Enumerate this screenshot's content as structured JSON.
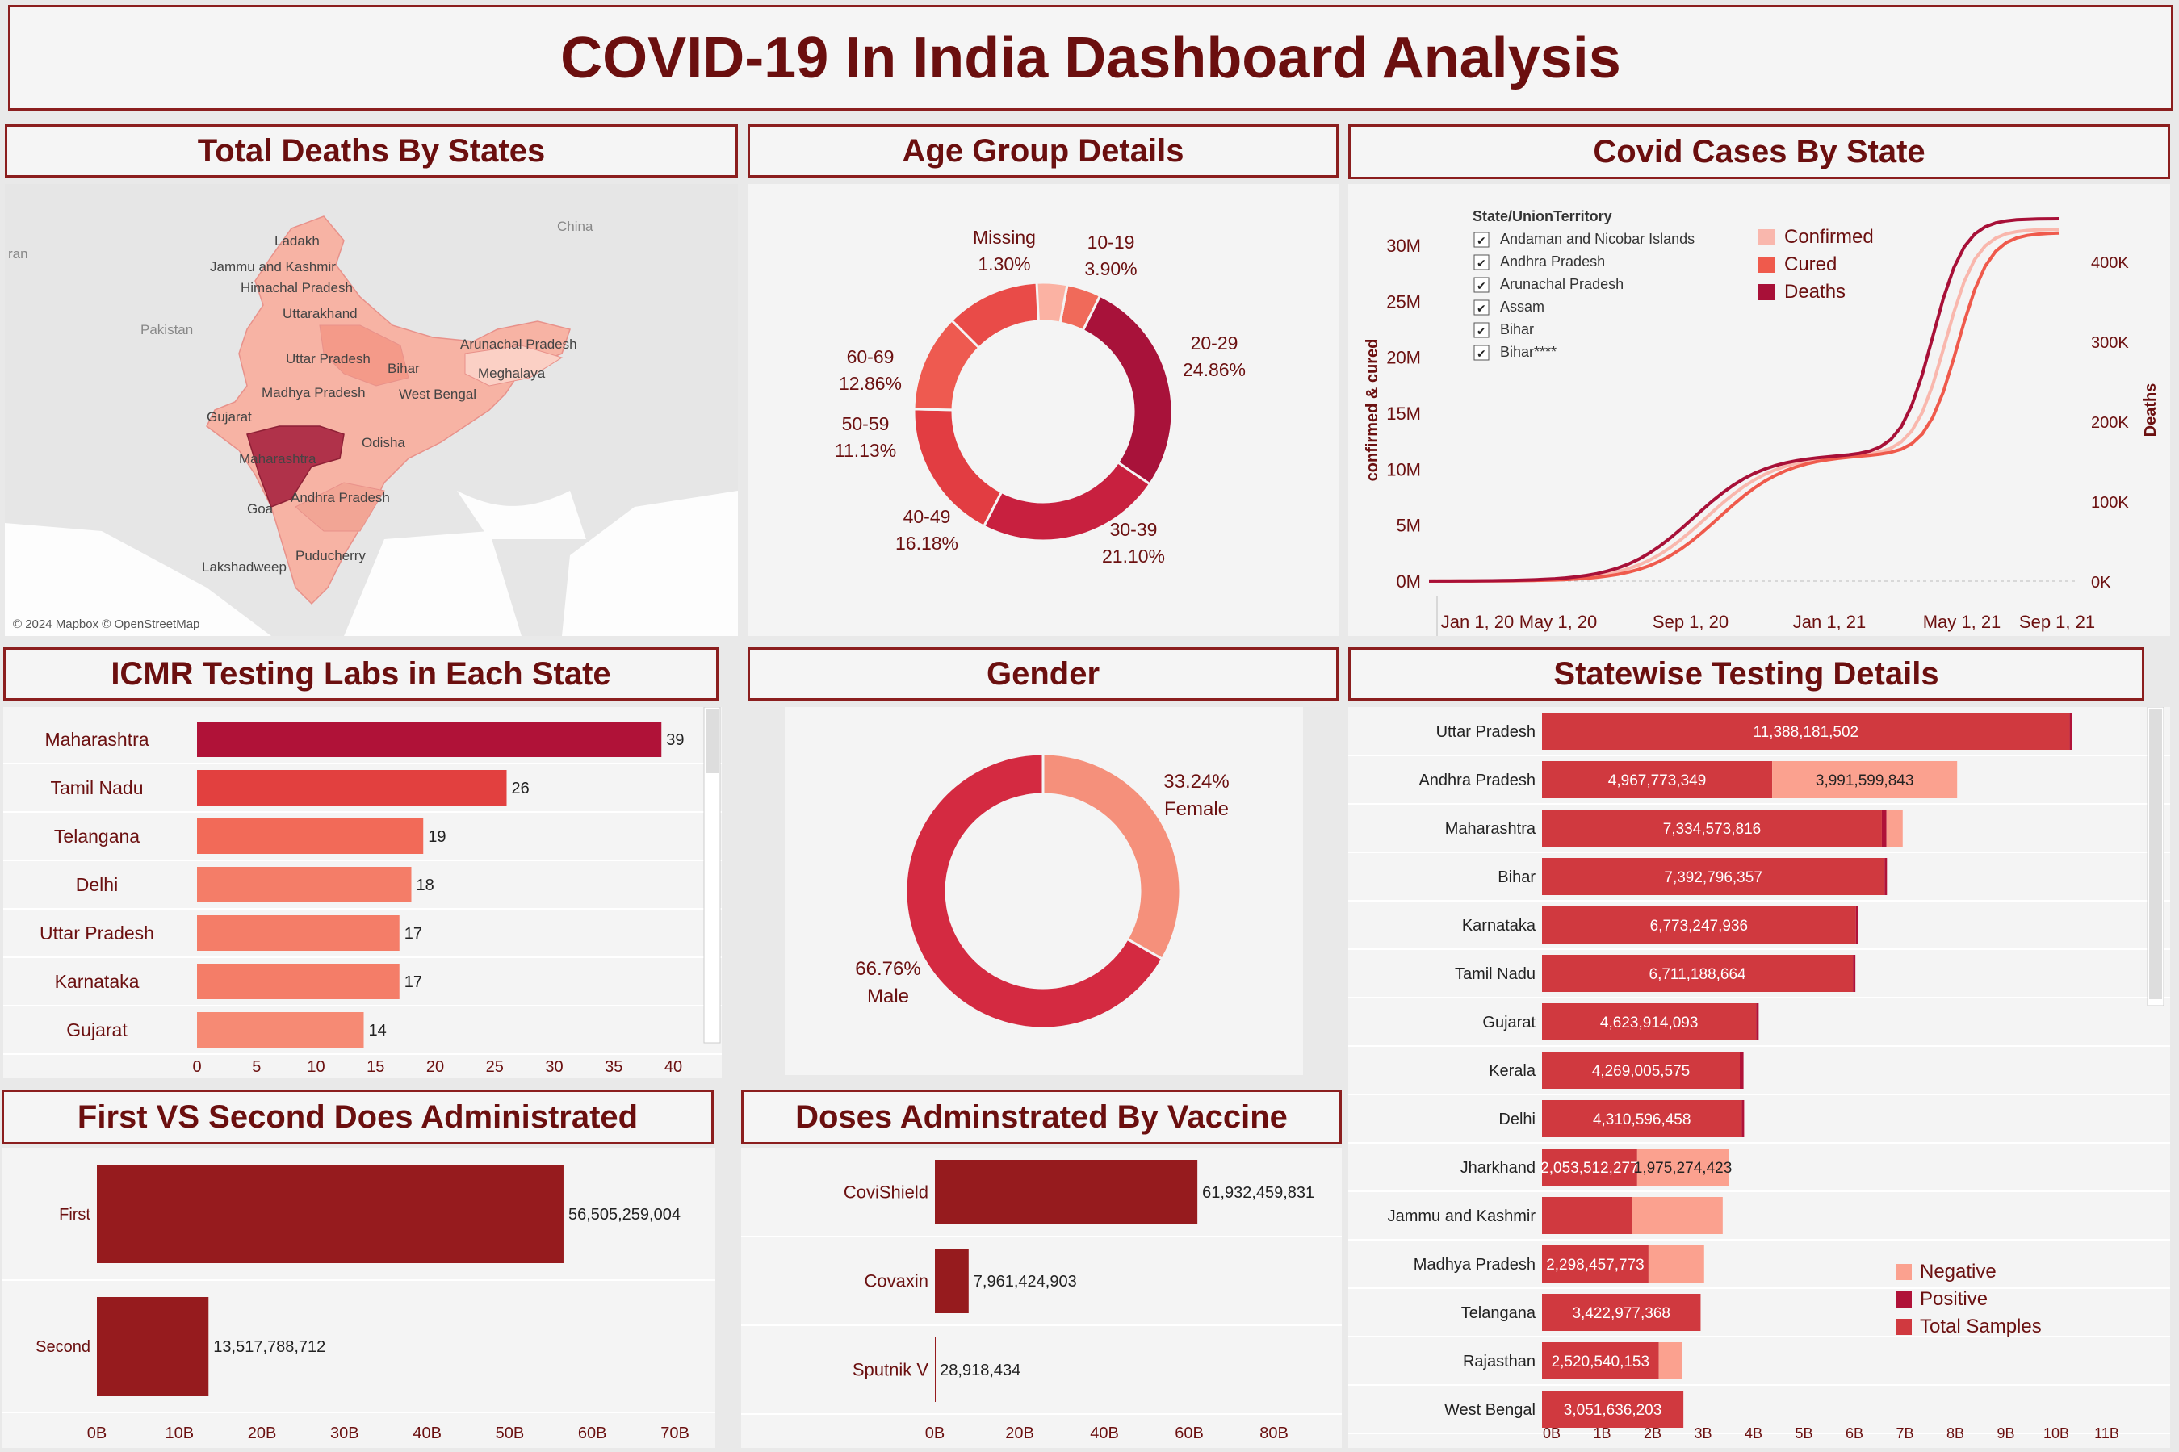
{
  "dashboard": {
    "title": "COVID-19 In India Dashboard Analysis"
  },
  "colors": {
    "dark_red": "#8b1a1a",
    "crimson": "#b01238",
    "red": "#d0393f",
    "salmon": "#f47e6b",
    "light": "#fbb2a3",
    "frame": "#8b1e1e"
  },
  "map_panel": {
    "title": "Total Deaths By States",
    "attribution": "© 2024 Mapbox © OpenStreetMap",
    "labels": [
      "Ladakh",
      "Jammu and Kashmir",
      "Himachal Pradesh",
      "Uttarakhand",
      "Uttar Pradesh",
      "Bihar",
      "Meghalaya",
      "Arunachal Pradesh",
      "Madhya Pradesh",
      "West Bengal",
      "Gujarat",
      "Odisha",
      "Maharashtra",
      "Andhra Pradesh",
      "Goa",
      "Puducherry",
      "Lakshadweep",
      "China",
      "Pakistan",
      "ran"
    ]
  },
  "age_panel": {
    "title": "Age Group Details",
    "chart_data": {
      "type": "pie",
      "donut": true,
      "slices": [
        {
          "label": "10-19",
          "value": 3.9,
          "text": "3.90%",
          "color": "#f06a5a"
        },
        {
          "label": "20-29",
          "value": 24.86,
          "text": "24.86%",
          "color": "#a8123a"
        },
        {
          "label": "30-39",
          "value": 21.1,
          "text": "21.10%",
          "color": "#c8203f"
        },
        {
          "label": "40-49",
          "value": 16.18,
          "text": "16.18%",
          "color": "#e23d42"
        },
        {
          "label": "50-59",
          "value": 11.13,
          "text": "11.13%",
          "color": "#ee5a50"
        },
        {
          "label": "60-69",
          "value": 12.86,
          "text": "12.86%",
          "color": "#e94b48"
        },
        {
          "label": "Missing",
          "value": 1.3,
          "text": "1.30%",
          "color": "#f89a86"
        }
      ]
    }
  },
  "cases_panel": {
    "title": "Covid Cases By State",
    "chart_data": {
      "type": "line",
      "x": [
        "Jan 1, 20",
        "May 1, 20",
        "Sep 1, 20",
        "Jan 1, 21",
        "May 1, 21",
        "Sep 1, 21"
      ],
      "xlabel": "",
      "ylabel": "confirmed & cured",
      "y2label": "Deaths",
      "yticks": [
        "0M",
        "5M",
        "10M",
        "15M",
        "20M",
        "25M",
        "30M"
      ],
      "y2ticks": [
        "0K",
        "100K",
        "200K",
        "300K",
        "400K"
      ],
      "ylim": [
        0,
        30000000
      ],
      "y2lim": [
        0,
        400000
      ],
      "series": [
        {
          "name": "Confirmed",
          "axis": "left",
          "color": "#f9b7ad",
          "values": [
            0,
            0.1,
            4.2,
            10.3,
            18.9,
            31.7
          ]
        },
        {
          "name": "Cured",
          "axis": "left",
          "color": "#ef5a4c",
          "values": [
            0,
            0.05,
            3.2,
            9.8,
            15.6,
            31.0
          ]
        },
        {
          "name": "Deaths",
          "axis": "right",
          "color": "#a81038",
          "values": [
            0,
            1000,
            66000,
            150000,
            215000,
            430000
          ]
        }
      ],
      "filter_title": "State/UnionTerritory",
      "filter_items": [
        "Andaman and Nicobar Islands",
        "Andhra Pradesh",
        "Arunachal Pradesh",
        "Assam",
        "Bihar",
        "Bihar****"
      ]
    }
  },
  "labs_panel": {
    "title": "ICMR Testing Labs in Each State",
    "chart_data": {
      "type": "bar",
      "orientation": "horizontal",
      "categories": [
        "Maharashtra",
        "Tamil Nadu",
        "Telangana",
        "Delhi",
        "Uttar Pradesh",
        "Karnataka",
        "Gujarat"
      ],
      "values": [
        39,
        26,
        19,
        18,
        17,
        17,
        14
      ],
      "colors": [
        "#b01238",
        "#e2403f",
        "#f26a58",
        "#f47d68",
        "#f47d68",
        "#f47d68",
        "#f68a74"
      ],
      "xticks": [
        "0",
        "5",
        "10",
        "15",
        "20",
        "25",
        "30",
        "35",
        "40"
      ],
      "xlim": [
        0,
        40
      ]
    }
  },
  "gender_panel": {
    "title": "Gender",
    "chart_data": {
      "type": "pie",
      "donut": true,
      "slices": [
        {
          "label": "Female",
          "value": 33.24,
          "text": "33.24%",
          "color": "#f5907b"
        },
        {
          "label": "Male",
          "value": 66.76,
          "text": "66.76%",
          "color": "#d42a41"
        }
      ]
    }
  },
  "testing_panel": {
    "title": "Statewise Testing Details",
    "chart_data": {
      "type": "bar",
      "orientation": "horizontal",
      "stacked": true,
      "categories": [
        "Uttar Pradesh",
        "Andhra Pradesh",
        "Maharashtra",
        "Bihar",
        "Karnataka",
        "Tamil Nadu",
        "Gujarat",
        "Kerala",
        "Delhi",
        "Jharkhand",
        "Jammu and Kashmir",
        "Madhya Pradesh",
        "Telangana",
        "Rajasthan",
        "West Bengal"
      ],
      "series": [
        {
          "name": "Total Samples",
          "color": "#d0393f",
          "values": [
            11388181502,
            4967773349,
            7334573816,
            7392796357,
            6773247936,
            6711188664,
            4623914093,
            4269005575,
            4310596458,
            2053512277,
            1950000000,
            2298457773,
            3422977368,
            2520540153,
            3051636203
          ],
          "labels": [
            "11,388,181,502",
            "4,967,773,349",
            "7,334,573,816",
            "7,392,796,357",
            "6,773,247,936",
            "6,711,188,664",
            "4,623,914,093",
            "4,269,005,575",
            "4,310,596,458",
            "2,053,512,277",
            "",
            "2,298,457,773",
            "3,422,977,368",
            "2,520,540,153",
            "3,051,636,203"
          ]
        },
        {
          "name": "Positive",
          "color": "#b01238",
          "values": [
            20000000,
            0,
            100000000,
            20000000,
            30000000,
            20000000,
            30000000,
            80000000,
            30000000,
            0,
            0,
            0,
            0,
            0,
            0
          ]
        },
        {
          "name": "Negative",
          "color": "#fba18f",
          "values": [
            0,
            3991599843,
            350000000,
            0,
            0,
            0,
            0,
            0,
            0,
            1975274423,
            1950000000,
            1200000000,
            0,
            500000000,
            0
          ],
          "labels": [
            "",
            "3,991,599,843",
            "",
            "",
            "",
            "",
            "",
            "",
            "",
            "1,975,274,423",
            "",
            "",
            "",
            "",
            ""
          ]
        }
      ],
      "xticks": [
        "0B",
        "1B",
        "2B",
        "3B",
        "4B",
        "5B",
        "6B",
        "7B",
        "8B",
        "9B",
        "10B",
        "11B"
      ],
      "xlim": [
        0,
        11500000000
      ],
      "legend": [
        "Negative",
        "Positive",
        "Total Samples"
      ]
    }
  },
  "dose_panel": {
    "title": "First VS Second Does Administrated",
    "chart_data": {
      "type": "bar",
      "orientation": "horizontal",
      "categories": [
        "First",
        "Second"
      ],
      "values": [
        56505259004,
        13517788712
      ],
      "labels": [
        "56,505,259,004",
        "13,517,788,712"
      ],
      "xticks": [
        "0B",
        "10B",
        "20B",
        "30B",
        "40B",
        "50B",
        "60B",
        "70B"
      ],
      "xlim": [
        0,
        70000000000
      ]
    }
  },
  "vaccine_panel": {
    "title": "Doses Adminstrated By Vaccine",
    "chart_data": {
      "type": "bar",
      "orientation": "horizontal",
      "categories": [
        "CoviShield",
        "Covaxin",
        "Sputnik V"
      ],
      "values": [
        61932459831,
        7961424903,
        28918434
      ],
      "labels": [
        "61,932,459,831",
        "7,961,424,903",
        "28,918,434"
      ],
      "xticks": [
        "0B",
        "20B",
        "40B",
        "60B",
        "80B"
      ],
      "xlim": [
        0,
        80000000000
      ]
    }
  }
}
